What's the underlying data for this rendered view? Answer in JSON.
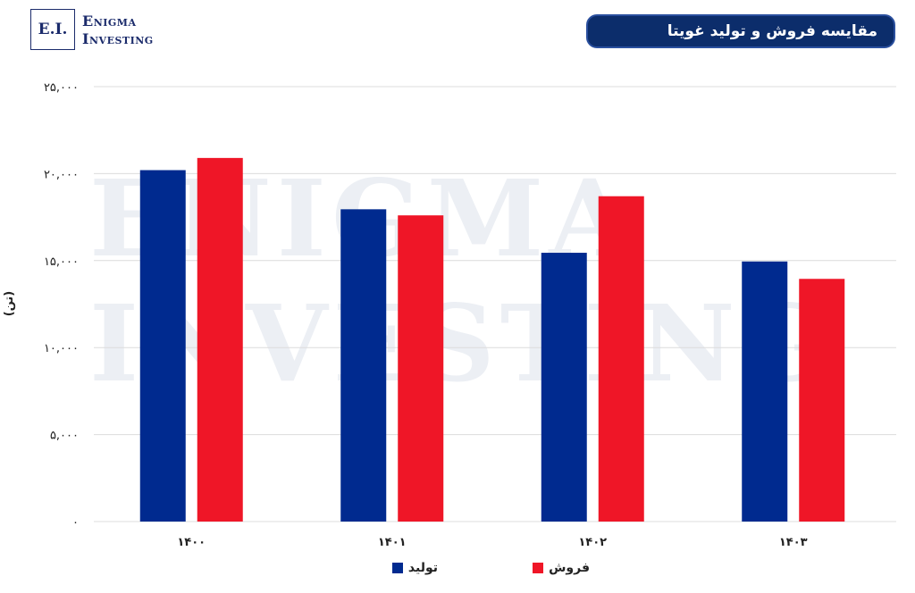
{
  "logo": {
    "mark": "E.I.",
    "line1": "Enigma",
    "line2": "Investing"
  },
  "watermark": {
    "line1": "ENIGMA",
    "line2": "INVESTING"
  },
  "colors": {
    "production": "#002a8f",
    "sales": "#ef1627",
    "title_bg": "#0c2d6b",
    "grid": "#dcdcdc"
  },
  "chart_data": {
    "type": "bar",
    "title": "مقایسه فروش و تولید غویتا",
    "ylabel": "(تن)",
    "xlabel": "",
    "categories": [
      "۱۴۰۰",
      "۱۴۰۱",
      "۱۴۰۲",
      "۱۴۰۳"
    ],
    "ylim": [
      0,
      25000
    ],
    "yticks": [
      0,
      5000,
      10000,
      15000,
      20000,
      25000
    ],
    "ytick_labels": [
      "۰",
      "۵,۰۰۰",
      "۱۰,۰۰۰",
      "۱۵,۰۰۰",
      "۲۰,۰۰۰",
      "۲۵,۰۰۰"
    ],
    "grid": true,
    "legend_position": "bottom",
    "series": [
      {
        "name": "تولید",
        "color": "#002a8f",
        "values": [
          20200,
          17950,
          15450,
          14950
        ]
      },
      {
        "name": "فروش",
        "color": "#ef1627",
        "values": [
          20900,
          17600,
          18700,
          13950
        ]
      }
    ]
  }
}
